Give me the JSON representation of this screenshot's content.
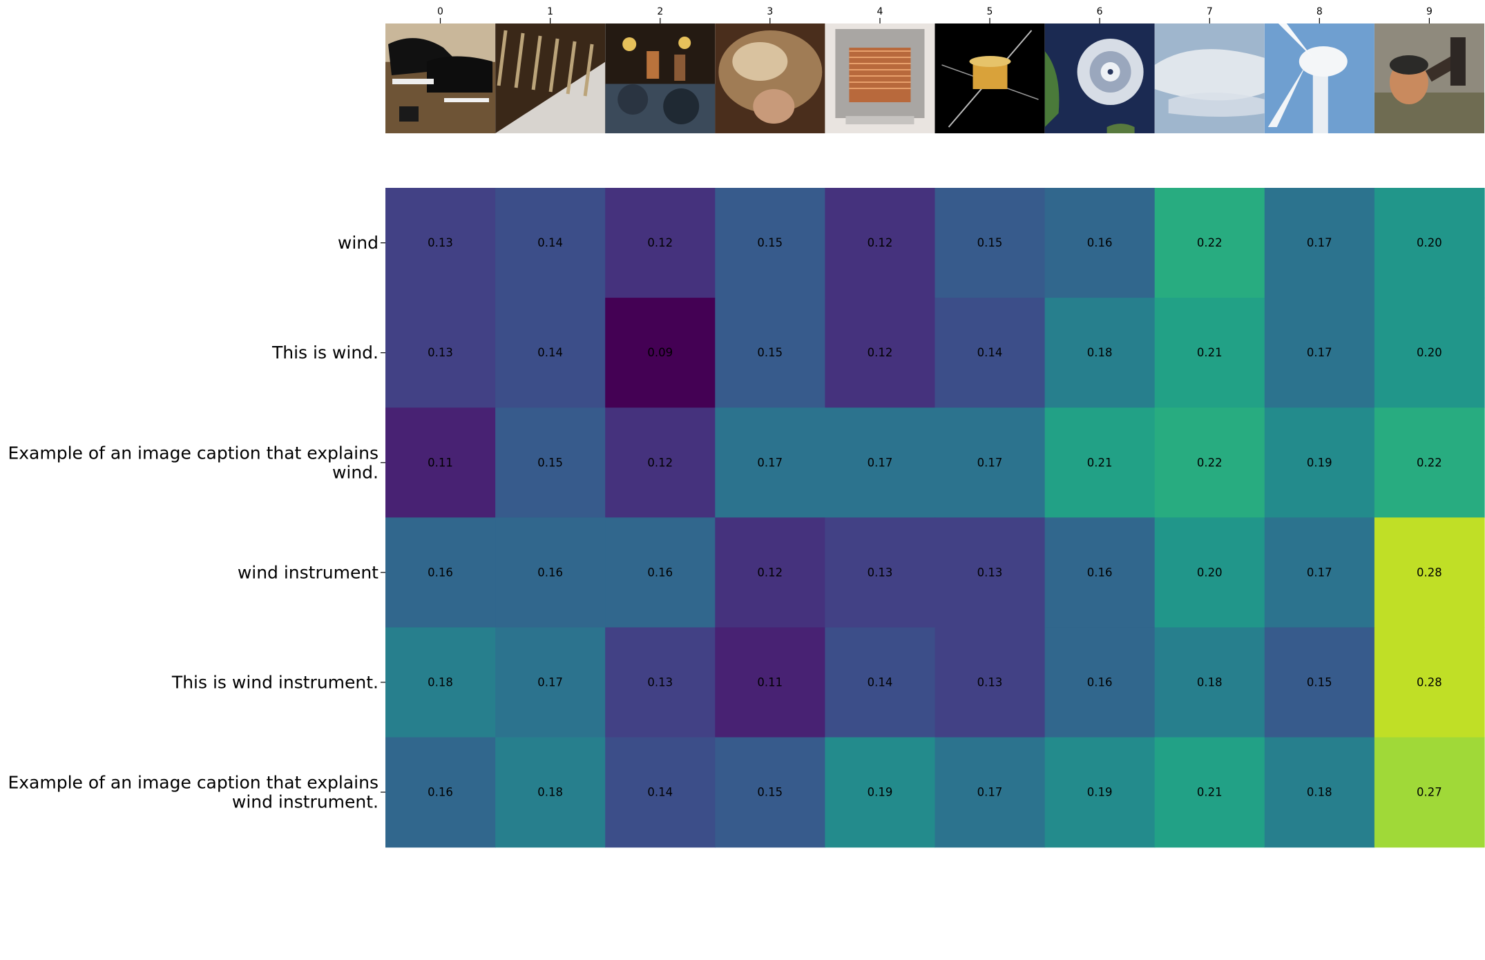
{
  "chart_data": {
    "type": "heatmap",
    "title": "",
    "xlabel": "",
    "ylabel": "",
    "columns": [
      "0",
      "1",
      "2",
      "3",
      "4",
      "5",
      "6",
      "7",
      "8",
      "9"
    ],
    "column_images": [
      "grand pianos in a showroom",
      "close-up of metal tuning pins",
      "band performing on stage",
      "person with curly hair, seen from above",
      "copper-wound transformer coil",
      "spacecraft on black background",
      "hurricane seen from orbit",
      "wispy clouds in a pale sky",
      "wind turbine tower",
      "man playing a wind instrument"
    ],
    "rows": [
      [
        "wind"
      ],
      [
        "This is wind."
      ],
      [
        "Example of an image caption that explains",
        "wind."
      ],
      [
        "wind instrument"
      ],
      [
        "This is wind instrument."
      ],
      [
        "Example of an image caption that explains",
        "wind instrument."
      ]
    ],
    "values": [
      [
        0.13,
        0.14,
        0.12,
        0.15,
        0.12,
        0.15,
        0.16,
        0.22,
        0.17,
        0.2
      ],
      [
        0.13,
        0.14,
        0.09,
        0.15,
        0.12,
        0.14,
        0.18,
        0.21,
        0.17,
        0.2
      ],
      [
        0.11,
        0.15,
        0.12,
        0.17,
        0.17,
        0.17,
        0.21,
        0.22,
        0.19,
        0.22
      ],
      [
        0.16,
        0.16,
        0.16,
        0.12,
        0.13,
        0.13,
        0.16,
        0.2,
        0.17,
        0.28
      ],
      [
        0.18,
        0.17,
        0.13,
        0.11,
        0.14,
        0.13,
        0.16,
        0.18,
        0.15,
        0.28
      ],
      [
        0.16,
        0.18,
        0.14,
        0.15,
        0.19,
        0.17,
        0.19,
        0.21,
        0.18,
        0.27
      ]
    ],
    "value_format": "2 decimals",
    "colormap": "viridis",
    "vmin": 0.09,
    "vmax": 0.3,
    "colorbar": false,
    "grid": false,
    "legend": "none",
    "cell_text_color": "#000000"
  }
}
